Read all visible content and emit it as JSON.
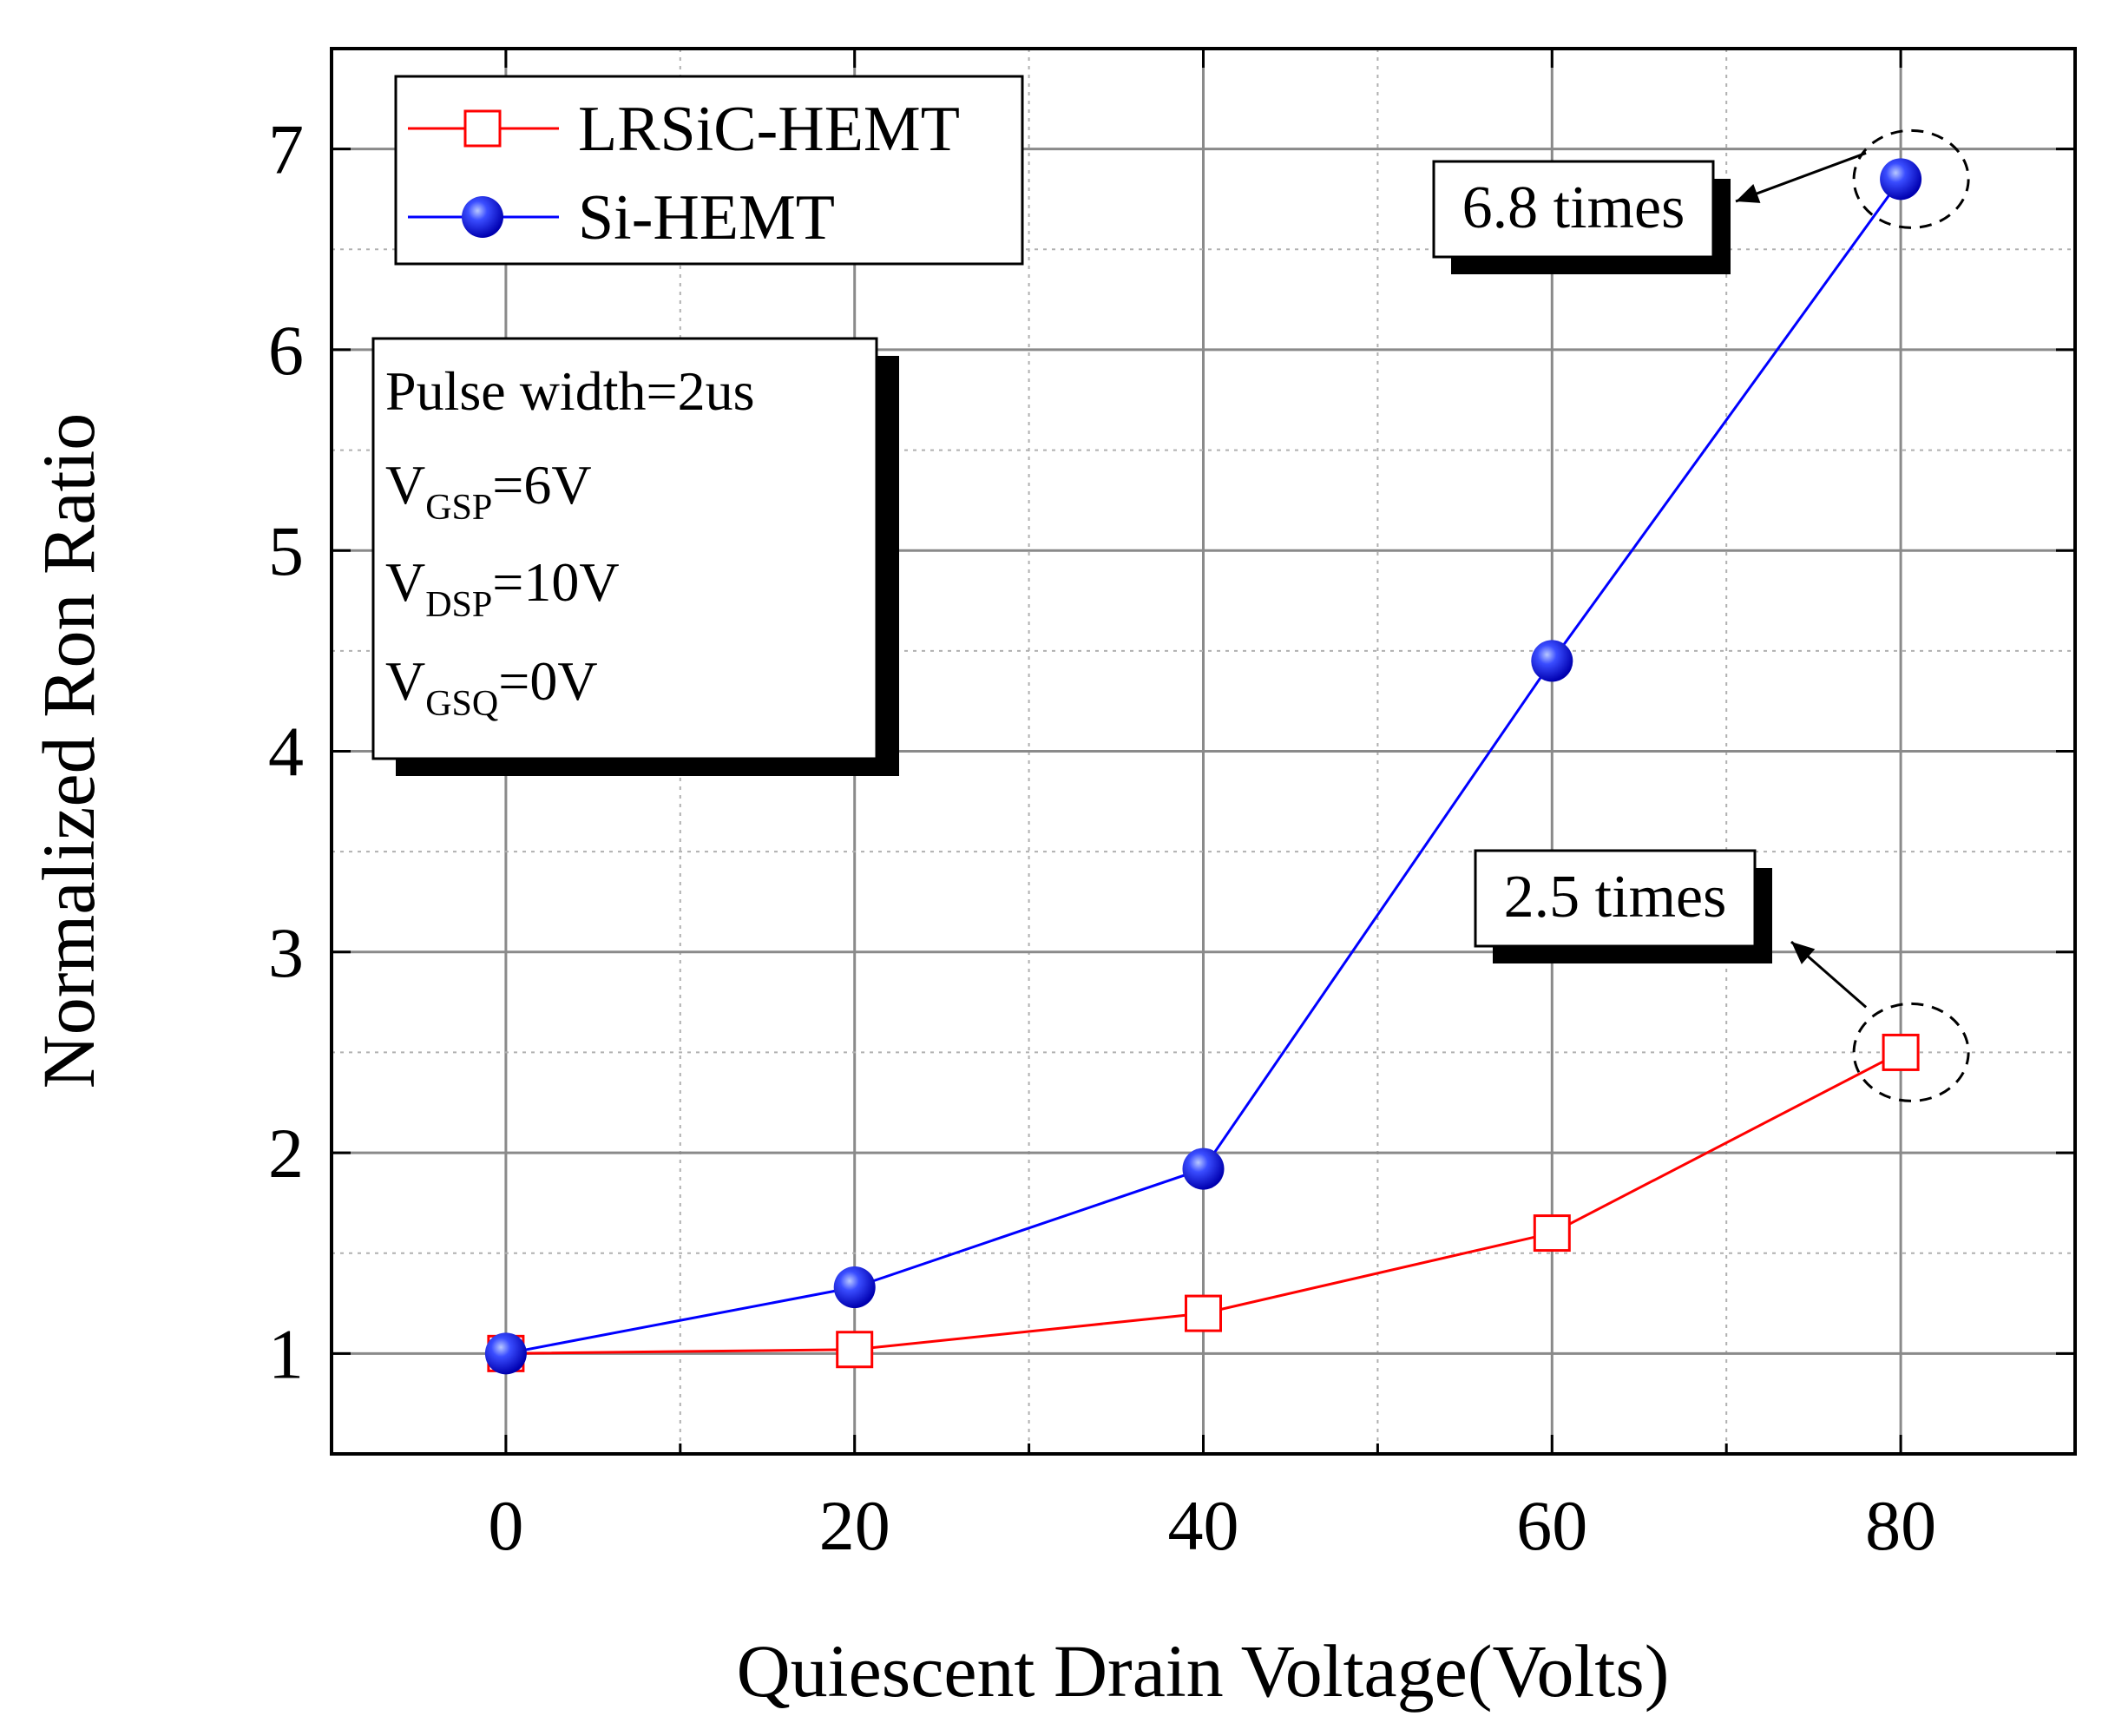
{
  "chart_data": {
    "type": "line",
    "title": "",
    "xlabel": "Quiescent Drain Voltage(Volts)",
    "ylabel": "Normalized Ron Ratio",
    "xlim": [
      -10,
      90
    ],
    "ylim": [
      0.5,
      7.5
    ],
    "grid": true,
    "x": [
      0,
      20,
      40,
      60,
      80
    ],
    "x_ticks": [
      "0",
      "20",
      "40",
      "60",
      "80"
    ],
    "y_ticks": [
      "1",
      "2",
      "3",
      "4",
      "5",
      "6",
      "7"
    ],
    "series": [
      {
        "name": "LRSiC-HEMT",
        "values": [
          1.0,
          1.02,
          1.2,
          1.6,
          2.5
        ],
        "color": "#ff0000",
        "marker": "open-square"
      },
      {
        "name": "Si-HEMT",
        "values": [
          1.0,
          1.33,
          1.92,
          4.45,
          6.85
        ],
        "color": "#0000ff",
        "marker": "filled-circle"
      }
    ],
    "legend_position": "top-left",
    "conditions": {
      "pulse_width": "Pulse width=2us",
      "vgsp": {
        "v": "V",
        "sub": "GSP",
        "rest": "=6V"
      },
      "vdsp": {
        "v": "V",
        "sub": "DSP",
        "rest": "=10V"
      },
      "vgsq": {
        "v": "V",
        "sub": "GSQ",
        "rest": "=0V"
      }
    },
    "annotations": [
      {
        "text": "6.8 times",
        "series": "Si-HEMT",
        "x": 80,
        "y": 6.85
      },
      {
        "text": "2.5 times",
        "series": "LRSiC-HEMT",
        "x": 80,
        "y": 2.5
      }
    ]
  }
}
